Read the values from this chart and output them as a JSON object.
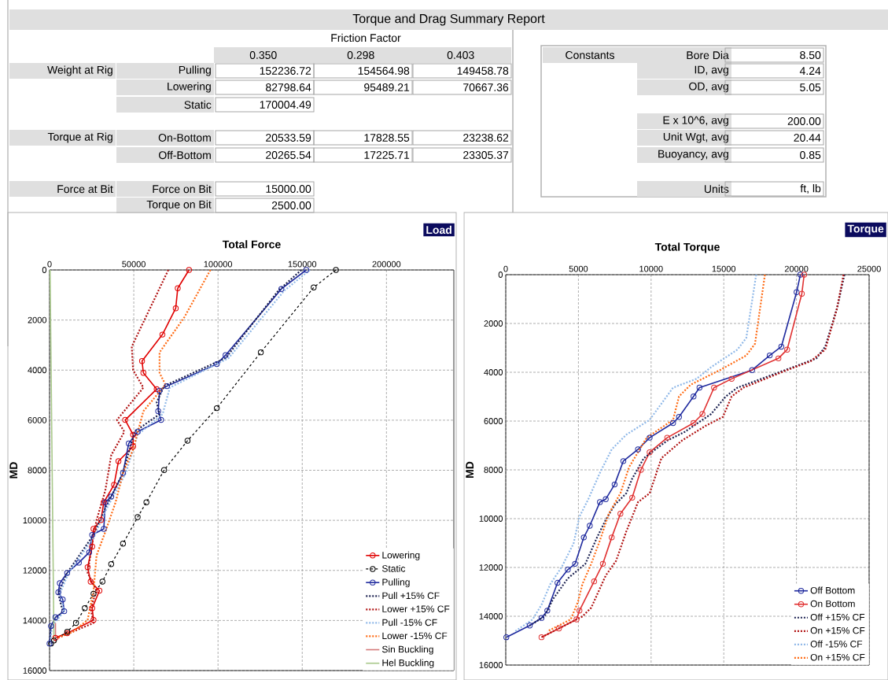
{
  "chart_data": [
    {
      "type": "other",
      "title": "Torque and Drag Summary Report",
      "annotations": [
        "Friction Factor",
        "0.350",
        "0.298",
        "0.403",
        "Weight at Rig",
        "Pulling",
        "152236.72",
        "154564.98",
        "149458.78",
        "Lowering",
        "82798.64",
        "95489.21",
        "70667.36",
        "Static",
        "170004.49",
        "Torque at Rig",
        "On-Bottom",
        "20533.59",
        "17828.55",
        "23238.62",
        "Off-Bottom",
        "20265.54",
        "17225.71",
        "23305.37",
        "Force at Bit",
        "Force on Bit",
        "15000.00",
        "Torque on Bit",
        "2500.00",
        "Constants",
        "Bore Dia",
        "8.50",
        "ID, avg",
        "4.24",
        "OD, avg",
        "5.05",
        "E x 10^6, avg",
        "200.00",
        "Unit Wgt, avg",
        "20.44",
        "Buoyancy, avg",
        "0.85",
        "Units",
        "ft, lb"
      ]
    },
    {
      "type": "line",
      "title": "Total Force",
      "ylabel": "MD",
      "annotations": [
        "Load"
      ],
      "xlim": [
        0,
        240000
      ],
      "xticks": [
        0,
        50000,
        100000,
        150000,
        200000
      ],
      "ylim": [
        16000,
        0
      ],
      "yticks": [
        0,
        2000,
        4000,
        6000,
        8000,
        10000,
        12000,
        14000,
        16000
      ],
      "grid": true,
      "legend": "bottom right",
      "series": [
        {
          "name": "Lowering",
          "color": "#e00000",
          "marker": "circle",
          "line_style": "solid",
          "x": [
            82800,
            76100,
            74900,
            67000,
            54900,
            55700,
            63600,
            44900,
            49600,
            49600,
            40900,
            38300,
            32200,
            30500,
            26100,
            25300,
            22600,
            24400,
            29600,
            25300,
            26100,
            10450,
            3500
          ],
          "values": [
            0,
            730,
            1530,
            2580,
            3640,
            4110,
            4760,
            5990,
            6580,
            7050,
            7640,
            8580,
            9280,
            9990,
            10340,
            11050,
            11870,
            12450,
            12810,
            13510,
            13980,
            14510,
            14690
          ]
        },
        {
          "name": "Static",
          "color": "#000000",
          "marker": "circle",
          "line_style": "dashed",
          "x": [
            170000,
            156800,
            125400,
            99300,
            81900,
            68000,
            57500,
            52300,
            43600,
            36600,
            31400,
            26100,
            20900,
            15700,
            10500,
            2600,
            870
          ],
          "values": [
            0,
            700,
            3290,
            5520,
            6820,
            7990,
            9280,
            9870,
            10930,
            11750,
            12450,
            12930,
            13510,
            14100,
            14450,
            14800,
            14920
          ]
        },
        {
          "name": "Pulling",
          "color": "#1f2a9e",
          "marker": "circle",
          "line_style": "solid",
          "x": [
            152400,
            137600,
            104500,
            99300,
            69700,
            65300,
            64500,
            66200,
            52300,
            47000,
            43600,
            36600,
            33100,
            32200,
            25300,
            23500,
            17400,
            10450,
            6100,
            5200,
            7800,
            8700,
            3500,
            870,
            0
          ],
          "values": [
            0,
            760,
            3400,
            3760,
            4640,
            4820,
            5640,
            5990,
            6460,
            6930,
            8110,
            9050,
            9280,
            10340,
            10580,
            11280,
            11690,
            12100,
            12510,
            12870,
            13160,
            13630,
            13870,
            14220,
            14920
          ]
        },
        {
          "name": "Pull +15% CF",
          "color": "#1b2050",
          "marker": "none",
          "line_style": "dotted",
          "x": [
            149500,
            135900,
            104500,
            67900,
            63600,
            65300,
            50500,
            43600,
            33100,
            26100,
            10450,
            5200,
            7800,
            870,
            0
          ],
          "values": [
            0,
            820,
            3520,
            4640,
            5290,
            5760,
            6460,
            8110,
            9520,
            10580,
            12100,
            12930,
            13630,
            14220,
            14920
          ]
        },
        {
          "name": "Lower +15% CF",
          "color": "#b01010",
          "marker": "none",
          "line_style": "dotted",
          "x": [
            70500,
            48800,
            49600,
            55700,
            40000,
            44400,
            36600,
            33100,
            27900,
            25300,
            22600,
            27900,
            24400,
            26100,
            5200
          ],
          "values": [
            0,
            3060,
            4000,
            4700,
            5990,
            6460,
            7400,
            8810,
            9990,
            10930,
            12100,
            12810,
            13510,
            14100,
            14690
          ]
        },
        {
          "name": "Pull -15% CF",
          "color": "#8fb8e8",
          "marker": "none",
          "line_style": "dotted",
          "x": [
            154600,
            139400,
            106300,
            71400,
            67100,
            52300,
            45300,
            34000,
            26100,
            11300,
            6100,
            8700,
            1400,
            350
          ],
          "values": [
            0,
            820,
            3520,
            4700,
            5760,
            6580,
            8110,
            9520,
            10700,
            12100,
            12930,
            13630,
            14220,
            14920
          ]
        },
        {
          "name": "Lower -15% CF",
          "color": "#ff6a13",
          "marker": "none",
          "line_style": "dotted",
          "x": [
            95500,
            80100,
            65300,
            65300,
            68800,
            55700,
            49600,
            43600,
            39200,
            33100,
            27900,
            26100,
            22600,
            13900,
            5200
          ],
          "values": [
            0,
            1880,
            3290,
            4110,
            4580,
            5640,
            7170,
            8110,
            9280,
            10460,
            11400,
            12810,
            13980,
            14450,
            14690
          ]
        },
        {
          "name": "Sin Buckling",
          "color": "#d47a7a",
          "marker": "none",
          "line_style": "solid",
          "x": [
            3500,
            3500
          ],
          "values": [
            14100,
            14900
          ]
        },
        {
          "name": "Hel Buckling",
          "color": "#a8c88a",
          "marker": "none",
          "line_style": "solid",
          "x": [
            300,
            2600
          ],
          "values": [
            0,
            14800
          ]
        }
      ]
    },
    {
      "type": "line",
      "title": "Total Torque",
      "ylabel": "MD",
      "annotations": [
        "Torque"
      ],
      "xlim": [
        0,
        25000
      ],
      "xticks": [
        0,
        5000,
        10000,
        15000,
        20000,
        25000
      ],
      "ylim": [
        16000,
        0
      ],
      "yticks": [
        0,
        2000,
        4000,
        6000,
        8000,
        10000,
        12000,
        14000,
        16000
      ],
      "grid": true,
      "legend": "bottom right",
      "series": [
        {
          "name": "Off Bottom",
          "color": "#1f2a9e",
          "marker": "circle",
          "line_style": "solid",
          "x": [
            20270,
            20010,
            18960,
            18160,
            16950,
            13330,
            12920,
            11920,
            11510,
            9900,
            9100,
            8090,
            7490,
            6880,
            6480,
            5780,
            5370,
            4770,
            4270,
            3560,
            2860,
            2460,
            1650,
            40
          ],
          "values": [
            0,
            720,
            2950,
            3310,
            3910,
            4630,
            4990,
            5830,
            6080,
            6680,
            7160,
            7640,
            8600,
            9200,
            9320,
            10290,
            10770,
            11850,
            12090,
            12630,
            13770,
            14070,
            14380,
            14860
          ]
        },
        {
          "name": "On Bottom",
          "color": "#e03030",
          "marker": "circle",
          "line_style": "solid",
          "x": [
            20530,
            20370,
            19360,
            18760,
            15540,
            14330,
            13530,
            12920,
            11110,
            9900,
            9300,
            8700,
            7890,
            7290,
            6680,
            6080,
            5070,
            4870,
            3660,
            2460
          ],
          "values": [
            0,
            780,
            3070,
            3430,
            4270,
            4630,
            5710,
            6080,
            6680,
            7280,
            8000,
            9140,
            9800,
            10770,
            11850,
            12570,
            13770,
            14130,
            14500,
            14860
          ]
        },
        {
          "name": "Off +15% CF",
          "color": "#1b2050",
          "marker": "none",
          "line_style": "dotted",
          "x": [
            23300,
            22790,
            21980,
            21380,
            19770,
            15940,
            15140,
            14130,
            12320,
            11110,
            9500,
            8700,
            8290,
            7490,
            6880,
            6280,
            5480,
            4270,
            3260,
            2660,
            1650
          ],
          "values": [
            0,
            1380,
            2950,
            3430,
            3790,
            4630,
            4990,
            5710,
            6440,
            6800,
            7520,
            8360,
            8960,
            9440,
            10050,
            10770,
            11850,
            12450,
            13290,
            14010,
            14380
          ]
        },
        {
          "name": "On +15% CF",
          "color": "#b01010",
          "marker": "none",
          "line_style": "dotted",
          "x": [
            23240,
            22790,
            21980,
            20970,
            19360,
            16350,
            15540,
            14940,
            13730,
            12120,
            10710,
            9900,
            9100,
            8290,
            7590,
            6880,
            5880,
            5270,
            2460
          ],
          "values": [
            0,
            1380,
            3070,
            3550,
            3910,
            4630,
            4990,
            5830,
            6200,
            6800,
            7520,
            8960,
            9320,
            10530,
            11730,
            12330,
            13650,
            14010,
            14860
          ]
        },
        {
          "name": "Off -15% CF",
          "color": "#8fb8e8",
          "marker": "none",
          "line_style": "dotted",
          "x": [
            17230,
            16550,
            15940,
            14130,
            13120,
            11510,
            9900,
            8290,
            7290,
            6480,
            5680,
            5070,
            4670,
            3860,
            3060,
            2460,
            1850,
            640
          ],
          "values": [
            0,
            2590,
            3070,
            3790,
            4270,
            4630,
            5950,
            6560,
            7160,
            8120,
            9200,
            9920,
            11010,
            11970,
            12690,
            13530,
            14130,
            14620
          ]
        },
        {
          "name": "On +15% CF",
          "color": "#ff6a13",
          "marker": "none",
          "line_style": "dotted",
          "x": [
            17830,
            17150,
            16550,
            14740,
            12720,
            11920,
            11510,
            9700,
            8490,
            7890,
            7090,
            6480,
            5880,
            5270,
            4970,
            4470,
            2860
          ],
          "values": [
            0,
            2830,
            3310,
            3910,
            4510,
            4990,
            5950,
            6680,
            7880,
            8960,
            9800,
            10890,
            11850,
            12690,
            13410,
            14130,
            14620
          ]
        }
      ]
    }
  ]
}
